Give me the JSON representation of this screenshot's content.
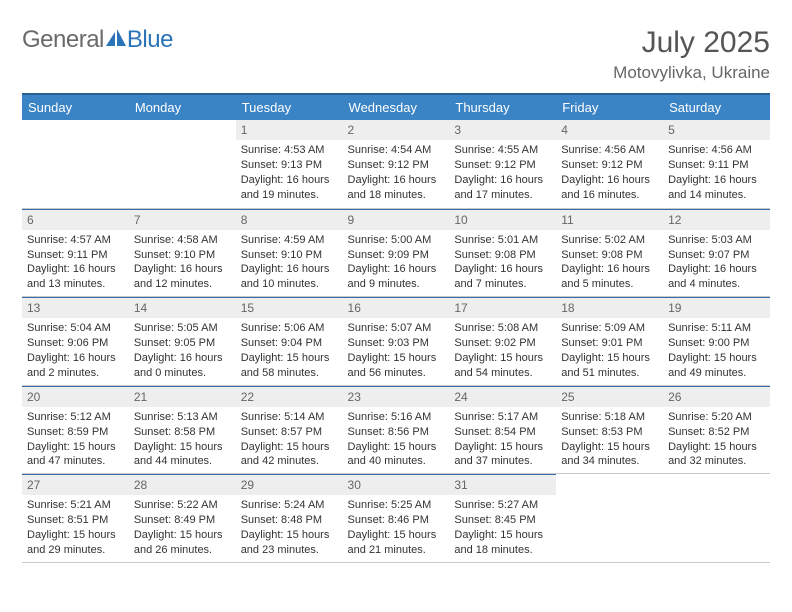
{
  "brand": {
    "part1": "General",
    "part2": "Blue"
  },
  "colors": {
    "header_bg": "#3a83c5",
    "header_rule": "#2a5f92",
    "daynum_bg": "#eeeeee",
    "day_rule": "#3a6fa5",
    "logo_gray": "#6a6a6a",
    "logo_blue": "#2b74b8"
  },
  "title": "July 2025",
  "location": "Motovylivka, Ukraine",
  "weekdays": [
    "Sunday",
    "Monday",
    "Tuesday",
    "Wednesday",
    "Thursday",
    "Friday",
    "Saturday"
  ],
  "weeks": [
    [
      {
        "empty": true
      },
      {
        "empty": true
      },
      {
        "num": "1",
        "sunrise": "Sunrise: 4:53 AM",
        "sunset": "Sunset: 9:13 PM",
        "day1": "Daylight: 16 hours",
        "day2": "and 19 minutes."
      },
      {
        "num": "2",
        "sunrise": "Sunrise: 4:54 AM",
        "sunset": "Sunset: 9:12 PM",
        "day1": "Daylight: 16 hours",
        "day2": "and 18 minutes."
      },
      {
        "num": "3",
        "sunrise": "Sunrise: 4:55 AM",
        "sunset": "Sunset: 9:12 PM",
        "day1": "Daylight: 16 hours",
        "day2": "and 17 minutes."
      },
      {
        "num": "4",
        "sunrise": "Sunrise: 4:56 AM",
        "sunset": "Sunset: 9:12 PM",
        "day1": "Daylight: 16 hours",
        "day2": "and 16 minutes."
      },
      {
        "num": "5",
        "sunrise": "Sunrise: 4:56 AM",
        "sunset": "Sunset: 9:11 PM",
        "day1": "Daylight: 16 hours",
        "day2": "and 14 minutes."
      }
    ],
    [
      {
        "num": "6",
        "sunrise": "Sunrise: 4:57 AM",
        "sunset": "Sunset: 9:11 PM",
        "day1": "Daylight: 16 hours",
        "day2": "and 13 minutes."
      },
      {
        "num": "7",
        "sunrise": "Sunrise: 4:58 AM",
        "sunset": "Sunset: 9:10 PM",
        "day1": "Daylight: 16 hours",
        "day2": "and 12 minutes."
      },
      {
        "num": "8",
        "sunrise": "Sunrise: 4:59 AM",
        "sunset": "Sunset: 9:10 PM",
        "day1": "Daylight: 16 hours",
        "day2": "and 10 minutes."
      },
      {
        "num": "9",
        "sunrise": "Sunrise: 5:00 AM",
        "sunset": "Sunset: 9:09 PM",
        "day1": "Daylight: 16 hours",
        "day2": "and 9 minutes."
      },
      {
        "num": "10",
        "sunrise": "Sunrise: 5:01 AM",
        "sunset": "Sunset: 9:08 PM",
        "day1": "Daylight: 16 hours",
        "day2": "and 7 minutes."
      },
      {
        "num": "11",
        "sunrise": "Sunrise: 5:02 AM",
        "sunset": "Sunset: 9:08 PM",
        "day1": "Daylight: 16 hours",
        "day2": "and 5 minutes."
      },
      {
        "num": "12",
        "sunrise": "Sunrise: 5:03 AM",
        "sunset": "Sunset: 9:07 PM",
        "day1": "Daylight: 16 hours",
        "day2": "and 4 minutes."
      }
    ],
    [
      {
        "num": "13",
        "sunrise": "Sunrise: 5:04 AM",
        "sunset": "Sunset: 9:06 PM",
        "day1": "Daylight: 16 hours",
        "day2": "and 2 minutes."
      },
      {
        "num": "14",
        "sunrise": "Sunrise: 5:05 AM",
        "sunset": "Sunset: 9:05 PM",
        "day1": "Daylight: 16 hours",
        "day2": "and 0 minutes."
      },
      {
        "num": "15",
        "sunrise": "Sunrise: 5:06 AM",
        "sunset": "Sunset: 9:04 PM",
        "day1": "Daylight: 15 hours",
        "day2": "and 58 minutes."
      },
      {
        "num": "16",
        "sunrise": "Sunrise: 5:07 AM",
        "sunset": "Sunset: 9:03 PM",
        "day1": "Daylight: 15 hours",
        "day2": "and 56 minutes."
      },
      {
        "num": "17",
        "sunrise": "Sunrise: 5:08 AM",
        "sunset": "Sunset: 9:02 PM",
        "day1": "Daylight: 15 hours",
        "day2": "and 54 minutes."
      },
      {
        "num": "18",
        "sunrise": "Sunrise: 5:09 AM",
        "sunset": "Sunset: 9:01 PM",
        "day1": "Daylight: 15 hours",
        "day2": "and 51 minutes."
      },
      {
        "num": "19",
        "sunrise": "Sunrise: 5:11 AM",
        "sunset": "Sunset: 9:00 PM",
        "day1": "Daylight: 15 hours",
        "day2": "and 49 minutes."
      }
    ],
    [
      {
        "num": "20",
        "sunrise": "Sunrise: 5:12 AM",
        "sunset": "Sunset: 8:59 PM",
        "day1": "Daylight: 15 hours",
        "day2": "and 47 minutes."
      },
      {
        "num": "21",
        "sunrise": "Sunrise: 5:13 AM",
        "sunset": "Sunset: 8:58 PM",
        "day1": "Daylight: 15 hours",
        "day2": "and 44 minutes."
      },
      {
        "num": "22",
        "sunrise": "Sunrise: 5:14 AM",
        "sunset": "Sunset: 8:57 PM",
        "day1": "Daylight: 15 hours",
        "day2": "and 42 minutes."
      },
      {
        "num": "23",
        "sunrise": "Sunrise: 5:16 AM",
        "sunset": "Sunset: 8:56 PM",
        "day1": "Daylight: 15 hours",
        "day2": "and 40 minutes."
      },
      {
        "num": "24",
        "sunrise": "Sunrise: 5:17 AM",
        "sunset": "Sunset: 8:54 PM",
        "day1": "Daylight: 15 hours",
        "day2": "and 37 minutes."
      },
      {
        "num": "25",
        "sunrise": "Sunrise: 5:18 AM",
        "sunset": "Sunset: 8:53 PM",
        "day1": "Daylight: 15 hours",
        "day2": "and 34 minutes."
      },
      {
        "num": "26",
        "sunrise": "Sunrise: 5:20 AM",
        "sunset": "Sunset: 8:52 PM",
        "day1": "Daylight: 15 hours",
        "day2": "and 32 minutes."
      }
    ],
    [
      {
        "num": "27",
        "sunrise": "Sunrise: 5:21 AM",
        "sunset": "Sunset: 8:51 PM",
        "day1": "Daylight: 15 hours",
        "day2": "and 29 minutes."
      },
      {
        "num": "28",
        "sunrise": "Sunrise: 5:22 AM",
        "sunset": "Sunset: 8:49 PM",
        "day1": "Daylight: 15 hours",
        "day2": "and 26 minutes."
      },
      {
        "num": "29",
        "sunrise": "Sunrise: 5:24 AM",
        "sunset": "Sunset: 8:48 PM",
        "day1": "Daylight: 15 hours",
        "day2": "and 23 minutes."
      },
      {
        "num": "30",
        "sunrise": "Sunrise: 5:25 AM",
        "sunset": "Sunset: 8:46 PM",
        "day1": "Daylight: 15 hours",
        "day2": "and 21 minutes."
      },
      {
        "num": "31",
        "sunrise": "Sunrise: 5:27 AM",
        "sunset": "Sunset: 8:45 PM",
        "day1": "Daylight: 15 hours",
        "day2": "and 18 minutes."
      },
      {
        "empty": true
      },
      {
        "empty": true
      }
    ]
  ]
}
